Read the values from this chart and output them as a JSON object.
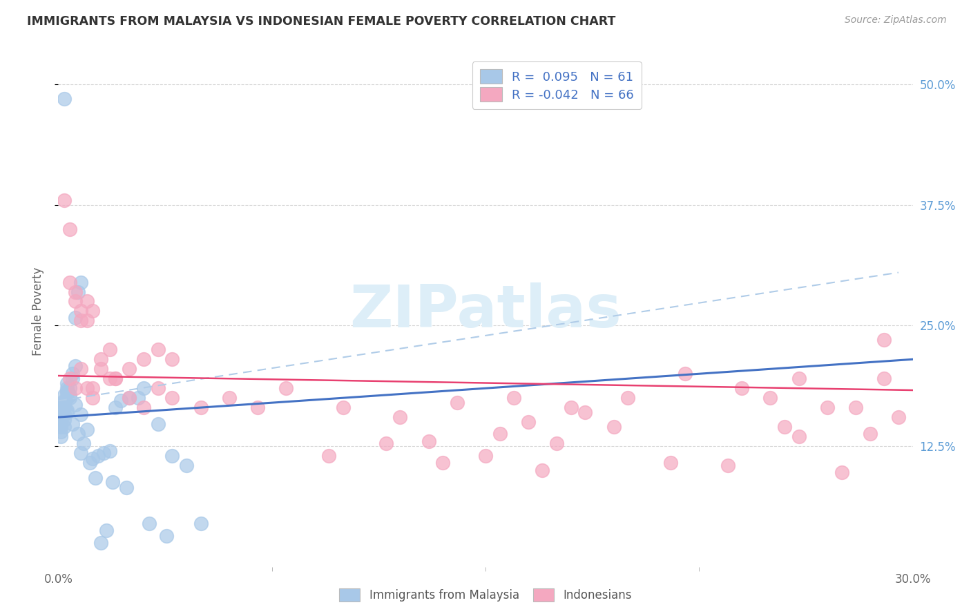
{
  "title": "IMMIGRANTS FROM MALAYSIA VS INDONESIAN FEMALE POVERTY CORRELATION CHART",
  "source": "Source: ZipAtlas.com",
  "ylabel": "Female Poverty",
  "xlim": [
    0.0,
    0.3
  ],
  "ylim": [
    0.0,
    0.53
  ],
  "ytick_values": [
    0.125,
    0.25,
    0.375,
    0.5
  ],
  "ytick_labels": [
    "12.5%",
    "25.0%",
    "37.5%",
    "50.0%"
  ],
  "xtick_values": [
    0.0,
    0.3
  ],
  "xtick_labels": [
    "0.0%",
    "30.0%"
  ],
  "color_blue": "#a8c8e8",
  "color_pink": "#f4a8c0",
  "line_blue_color": "#4472c4",
  "line_pink_color": "#e84070",
  "line_dashed_color": "#b0cce8",
  "background_color": "#ffffff",
  "grid_color": "#d8d8d8",
  "legend_label1": "Immigrants from Malaysia",
  "legend_label2": "Indonesians",
  "title_color": "#333333",
  "source_color": "#999999",
  "ytick_color": "#5b9bd5",
  "xtick_color": "#666666",
  "ylabel_color": "#666666",
  "watermark_color": "#ddeef8",
  "blue_x": [
    0.002,
    0.001,
    0.001,
    0.002,
    0.001,
    0.003,
    0.002,
    0.001,
    0.003,
    0.002,
    0.001,
    0.004,
    0.003,
    0.002,
    0.001,
    0.002,
    0.003,
    0.001,
    0.002,
    0.003,
    0.004,
    0.005,
    0.003,
    0.002,
    0.001,
    0.004,
    0.005,
    0.003,
    0.002,
    0.006,
    0.007,
    0.008,
    0.006,
    0.005,
    0.007,
    0.009,
    0.01,
    0.008,
    0.011,
    0.012,
    0.014,
    0.016,
    0.018,
    0.02,
    0.025,
    0.03,
    0.035,
    0.04,
    0.045,
    0.05,
    0.028,
    0.022,
    0.015,
    0.017,
    0.013,
    0.019,
    0.024,
    0.032,
    0.038,
    0.006,
    0.008
  ],
  "blue_y": [
    0.485,
    0.155,
    0.145,
    0.145,
    0.135,
    0.16,
    0.165,
    0.155,
    0.175,
    0.17,
    0.165,
    0.175,
    0.185,
    0.178,
    0.155,
    0.158,
    0.162,
    0.148,
    0.152,
    0.18,
    0.185,
    0.195,
    0.19,
    0.172,
    0.14,
    0.178,
    0.2,
    0.182,
    0.168,
    0.208,
    0.285,
    0.295,
    0.258,
    0.148,
    0.138,
    0.128,
    0.142,
    0.118,
    0.108,
    0.112,
    0.115,
    0.118,
    0.12,
    0.165,
    0.175,
    0.185,
    0.148,
    0.115,
    0.105,
    0.045,
    0.175,
    0.172,
    0.025,
    0.038,
    0.092,
    0.088,
    0.082,
    0.045,
    0.032,
    0.168,
    0.158
  ],
  "pink_x": [
    0.002,
    0.004,
    0.006,
    0.008,
    0.006,
    0.004,
    0.008,
    0.01,
    0.012,
    0.01,
    0.015,
    0.012,
    0.018,
    0.015,
    0.02,
    0.018,
    0.008,
    0.01,
    0.006,
    0.012,
    0.004,
    0.02,
    0.025,
    0.03,
    0.035,
    0.04,
    0.025,
    0.03,
    0.035,
    0.04,
    0.05,
    0.06,
    0.07,
    0.08,
    0.1,
    0.12,
    0.14,
    0.16,
    0.18,
    0.2,
    0.22,
    0.24,
    0.26,
    0.28,
    0.295,
    0.29,
    0.27,
    0.25,
    0.165,
    0.185,
    0.13,
    0.15,
    0.17,
    0.195,
    0.215,
    0.235,
    0.255,
    0.275,
    0.285,
    0.095,
    0.115,
    0.135,
    0.155,
    0.175,
    0.29,
    0.26
  ],
  "pink_y": [
    0.38,
    0.35,
    0.275,
    0.255,
    0.285,
    0.295,
    0.265,
    0.275,
    0.265,
    0.255,
    0.205,
    0.185,
    0.225,
    0.215,
    0.195,
    0.195,
    0.205,
    0.185,
    0.185,
    0.175,
    0.195,
    0.195,
    0.205,
    0.215,
    0.225,
    0.215,
    0.175,
    0.165,
    0.185,
    0.175,
    0.165,
    0.175,
    0.165,
    0.185,
    0.165,
    0.155,
    0.17,
    0.175,
    0.165,
    0.175,
    0.2,
    0.185,
    0.195,
    0.165,
    0.155,
    0.195,
    0.165,
    0.175,
    0.15,
    0.16,
    0.13,
    0.115,
    0.1,
    0.145,
    0.108,
    0.105,
    0.145,
    0.098,
    0.138,
    0.115,
    0.128,
    0.108,
    0.138,
    0.128,
    0.235,
    0.135
  ],
  "blue_line_x": [
    0.0,
    0.3
  ],
  "blue_line_y": [
    0.155,
    0.215
  ],
  "pink_line_x": [
    0.0,
    0.3
  ],
  "pink_line_y": [
    0.198,
    0.183
  ],
  "dash_line_x": [
    0.0,
    0.295
  ],
  "dash_line_y": [
    0.172,
    0.305
  ]
}
